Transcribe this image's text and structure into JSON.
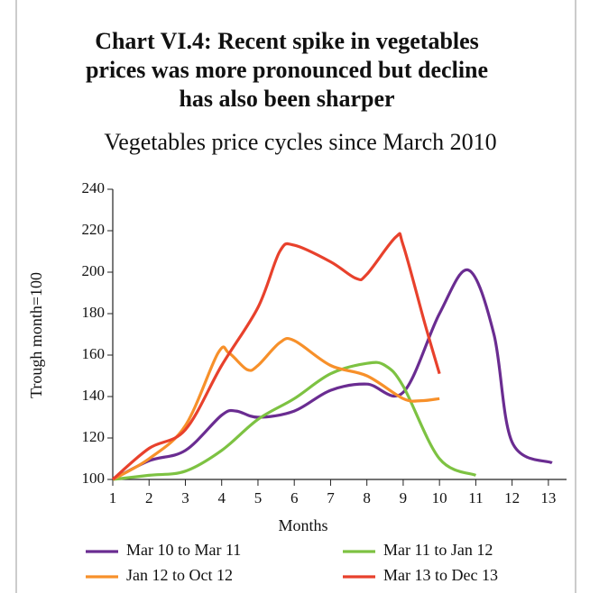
{
  "chart_data": {
    "type": "line",
    "title": [
      "Chart VI.4: Recent spike in vegetables",
      "prices was more pronounced but decline",
      "has also been sharper"
    ],
    "subtitle": "Vegetables price cycles since March 2010",
    "x_label": "Months",
    "y_label": "Trough month=100",
    "xlim": [
      1,
      13.5
    ],
    "xticks": [
      1,
      2,
      3,
      4,
      5,
      6,
      7,
      8,
      9,
      10,
      11,
      12,
      13
    ],
    "ylim": [
      100,
      240
    ],
    "yticks": [
      100,
      120,
      140,
      160,
      180,
      200,
      220,
      240
    ],
    "series": [
      {
        "name": "Mar 10 to Mar 11",
        "color": "#6a2c91",
        "x": [
          1,
          2,
          3,
          4,
          4.4,
          5,
          6,
          7,
          8,
          9,
          10,
          10.8,
          11.5,
          12,
          13.1
        ],
        "values": [
          100,
          109,
          114,
          131,
          133,
          130,
          133,
          143,
          146,
          142,
          180,
          201,
          170,
          118,
          108
        ]
      },
      {
        "name": "Mar 11 to Jan 12",
        "color": "#7dc242",
        "x": [
          1,
          2,
          3,
          4,
          5,
          6,
          7,
          8,
          8.5,
          9,
          10,
          11
        ],
        "values": [
          100,
          102,
          104,
          114,
          129,
          139,
          151,
          156,
          155,
          145,
          110,
          102
        ]
      },
      {
        "name": "Jan 12 to Oct 12",
        "color": "#f7902a",
        "x": [
          1,
          2,
          3,
          3.9,
          4.2,
          4.7,
          5,
          5.6,
          6,
          7,
          8,
          9,
          9.5,
          10
        ],
        "values": [
          100,
          110,
          126,
          161,
          161,
          153,
          155,
          166,
          167,
          155,
          150,
          139,
          138,
          139
        ]
      },
      {
        "name": "Mar 13 to Dec 13",
        "color": "#e8412c",
        "x": [
          1,
          2,
          3,
          4,
          5,
          5.6,
          6,
          7,
          7.7,
          8,
          8.8,
          9,
          9.6,
          10
        ],
        "values": [
          100,
          115,
          124,
          155,
          183,
          210,
          213,
          205,
          197,
          199,
          217,
          213,
          175,
          151
        ]
      }
    ]
  }
}
